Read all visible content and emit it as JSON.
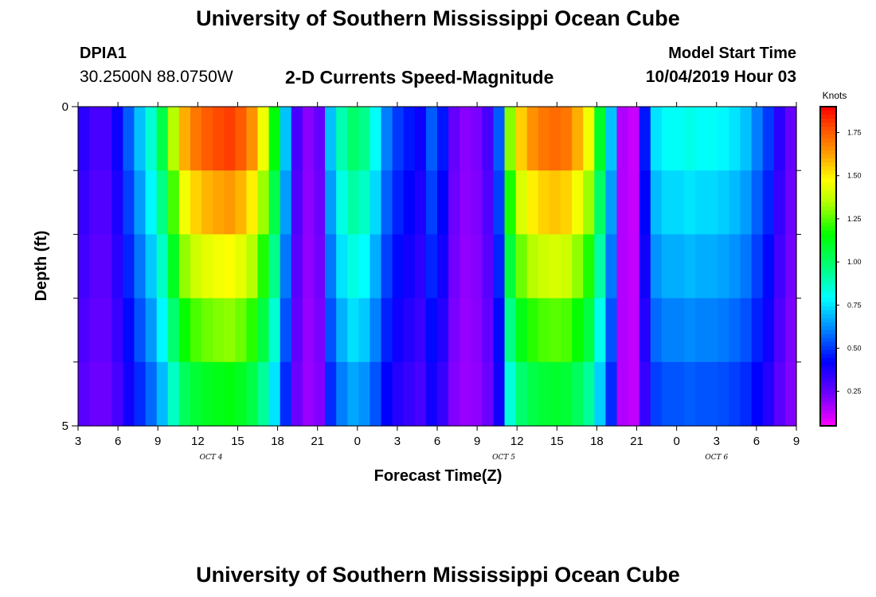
{
  "header": {
    "title": "University of Southern Mississippi Ocean Cube",
    "station_id": "DPIA1",
    "station_coords": "30.2500N 88.0750W",
    "model_start_label": "Model Start Time",
    "model_start_value": "10/04/2019 Hour 03"
  },
  "footer": {
    "title": "University of Southern Mississippi Ocean Cube"
  },
  "chart_data": {
    "type": "heatmap",
    "title": "2-D Currents Speed-Magnitude",
    "xlabel": "Forecast Time(Z)",
    "ylabel": "Depth (ft)",
    "x_tick_labels": [
      "3",
      "6",
      "9",
      "12",
      "15",
      "18",
      "21",
      "0",
      "3",
      "6",
      "9",
      "12",
      "15",
      "18",
      "21",
      "0",
      "3",
      "6",
      "9"
    ],
    "x_tick_hours": [
      3,
      6,
      9,
      12,
      15,
      18,
      21,
      24,
      27,
      30,
      33,
      36,
      39,
      42,
      45,
      48,
      51,
      54,
      57
    ],
    "x_range_hours": [
      3,
      57
    ],
    "date_labels": [
      {
        "text": "OCT 4",
        "hour": 13
      },
      {
        "text": "OCT 5",
        "hour": 35
      },
      {
        "text": "OCT 6",
        "hour": 51
      }
    ],
    "y_tick_labels": [
      "0",
      "5"
    ],
    "y_range": [
      0,
      5
    ],
    "y_minor_ticks": [
      1,
      2,
      3,
      4
    ],
    "depth_bins": 5,
    "speed_profile_knots": [
      0.35,
      0.3,
      0.3,
      0.4,
      0.55,
      0.7,
      0.85,
      1.05,
      1.35,
      1.6,
      1.7,
      1.75,
      1.78,
      1.8,
      1.75,
      1.65,
      1.45,
      1.15,
      0.7,
      0.3,
      0.2,
      0.25,
      0.7,
      0.9,
      1.0,
      0.95,
      0.8,
      0.6,
      0.5,
      0.45,
      0.4,
      0.55,
      0.45,
      0.25,
      0.2,
      0.22,
      0.3,
      0.55,
      1.3,
      1.55,
      1.65,
      1.7,
      1.72,
      1.7,
      1.6,
      1.45,
      1.1,
      0.7,
      0.15,
      0.12,
      0.45,
      0.75,
      0.8,
      0.8,
      0.82,
      0.8,
      0.8,
      0.78,
      0.75,
      0.7,
      0.6,
      0.5,
      0.35,
      0.25
    ],
    "depth_factor": [
      1.0,
      0.9,
      0.8,
      0.7,
      0.6
    ],
    "colorbar": {
      "label": "Knots",
      "ticks": [
        "0.25",
        "0.50",
        "0.75",
        "1.00",
        "1.25",
        "1.50",
        "1.75"
      ],
      "tick_values": [
        0.25,
        0.5,
        0.75,
        1.0,
        1.25,
        1.5,
        1.75
      ],
      "range": [
        0.05,
        1.9
      ]
    }
  }
}
